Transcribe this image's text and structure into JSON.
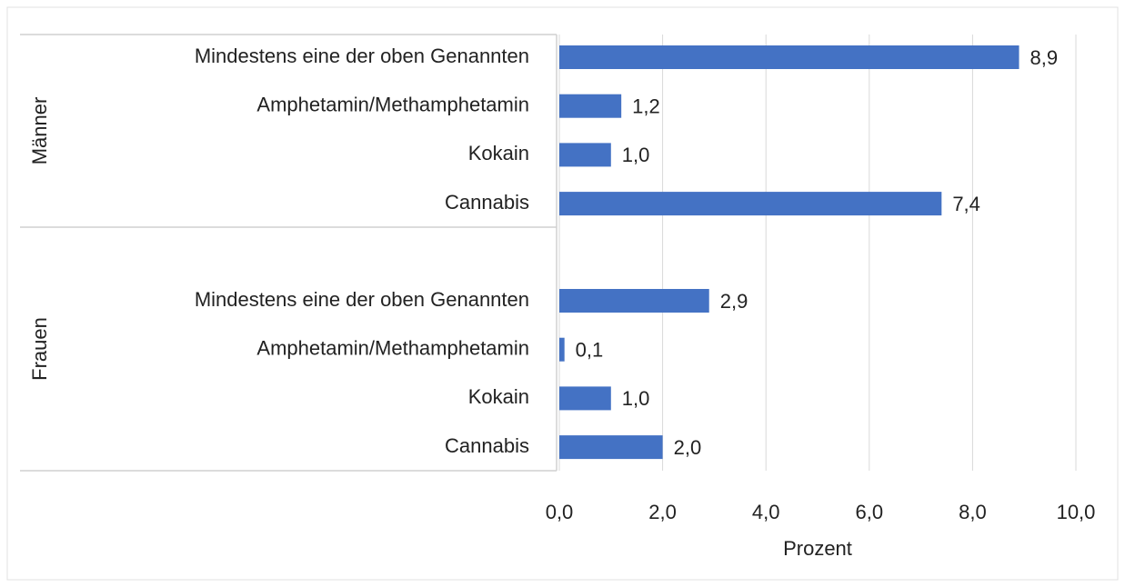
{
  "chart_data": {
    "type": "bar",
    "orientation": "horizontal",
    "color": "#4472c4",
    "groups": [
      {
        "name": "Männer",
        "categories": [
          "Mindestens eine der oben Genannten",
          "Amphetamin/Methamphetamin",
          "Kokain",
          "Cannabis"
        ],
        "values": [
          8.9,
          1.2,
          1.0,
          7.4
        ],
        "value_labels": [
          "8,9",
          "1,2",
          "1,0",
          "7,4"
        ]
      },
      {
        "name": "Frauen",
        "categories": [
          "Mindestens eine der oben Genannten",
          "Amphetamin/Methamphetamin",
          "Kokain",
          "Cannabis"
        ],
        "values": [
          2.9,
          0.1,
          1.0,
          2.0
        ],
        "value_labels": [
          "2,9",
          "0,1",
          "1,0",
          "2,0"
        ]
      }
    ],
    "xlim": [
      0,
      10
    ],
    "xticks": [
      {
        "value": 0,
        "label": "0,0"
      },
      {
        "value": 2,
        "label": "2,0"
      },
      {
        "value": 4,
        "label": "4,0"
      },
      {
        "value": 6,
        "label": "6,0"
      },
      {
        "value": 8,
        "label": "8,0"
      },
      {
        "value": 10,
        "label": "10,0"
      }
    ],
    "xlabel": "Prozent",
    "grid": true
  }
}
